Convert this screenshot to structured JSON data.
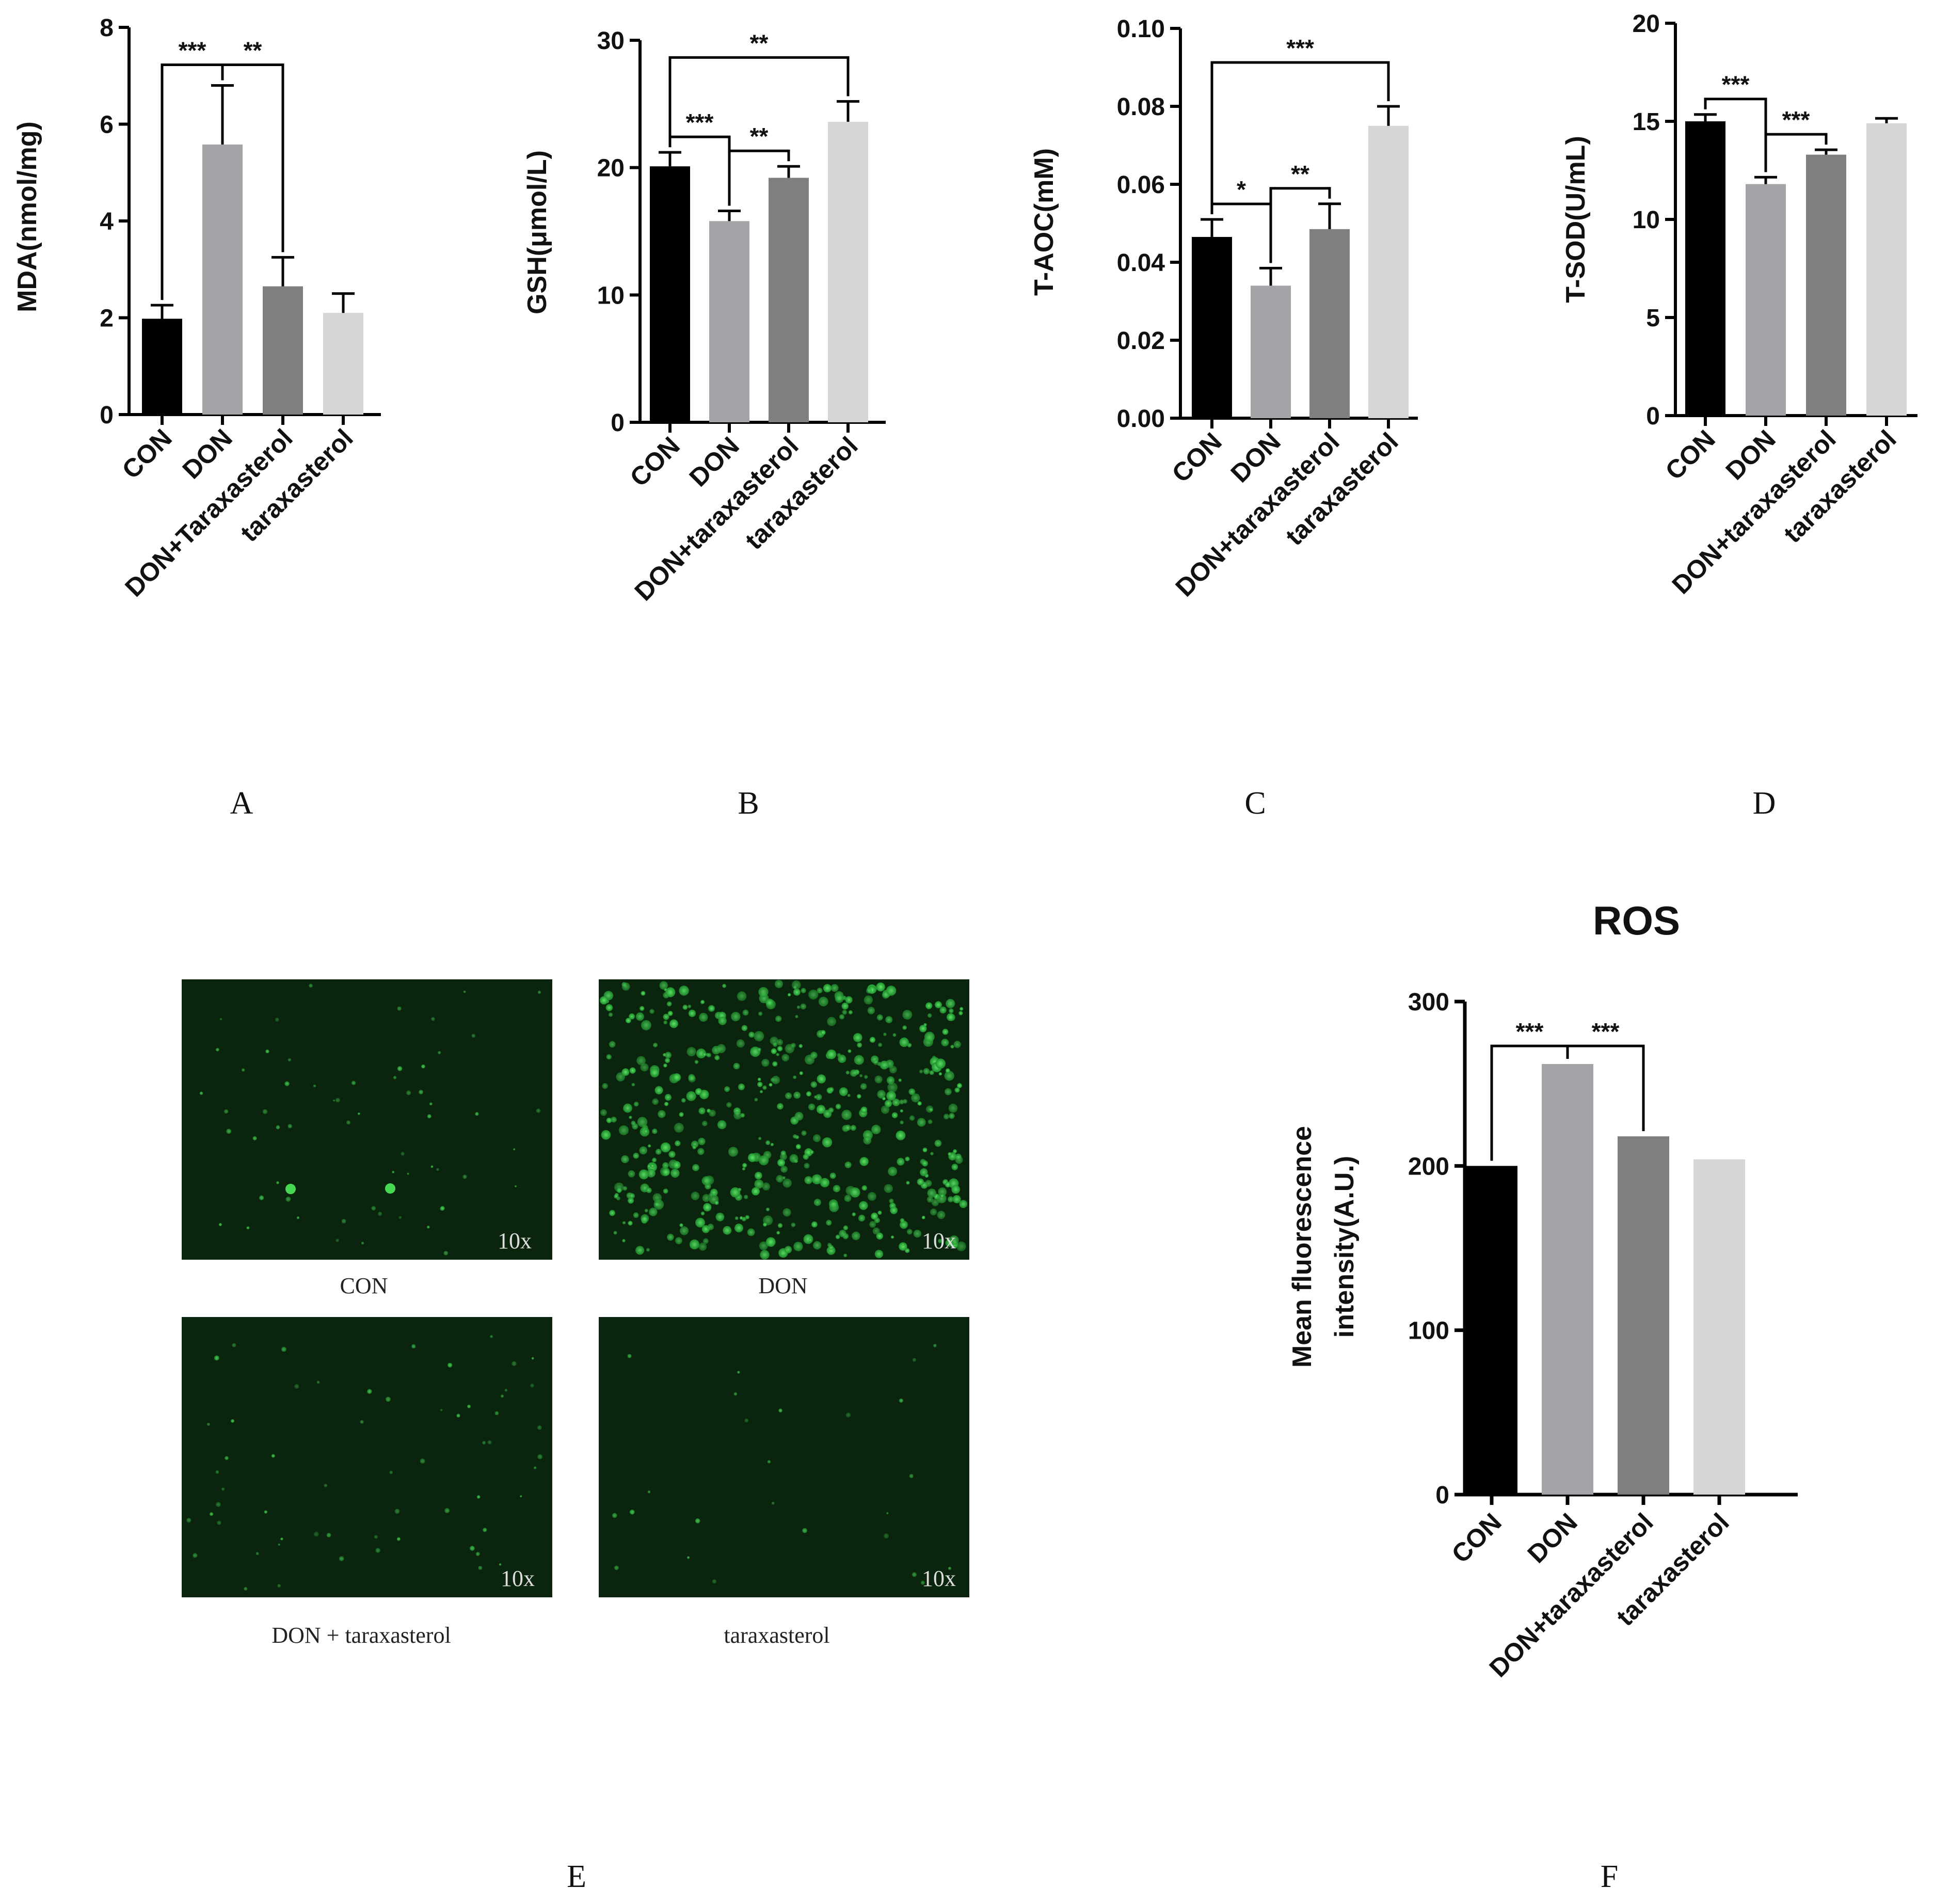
{
  "colors": {
    "CON": "#000000",
    "DON": "#a3a3a8",
    "DON+taraxasterol": "#7f7f7f",
    "taraxasterol": "#d6d6d6",
    "micrograph_background": "#0b240d",
    "micrograph_cells": "#2fbf3f"
  },
  "chart_data": [
    {
      "panel": "A",
      "type": "bar",
      "categories": [
        "CON",
        "DON",
        "DON+Taraxasterol",
        "taraxasterol"
      ],
      "values": [
        1.98,
        5.58,
        2.65,
        2.1
      ],
      "errors": [
        0.28,
        1.22,
        0.6,
        0.4
      ],
      "ylabel": "MDA(nmol/mg)",
      "ylim": [
        0,
        8
      ],
      "yticks": [
        0,
        2,
        4,
        6,
        8
      ],
      "tick_labels": [
        "0",
        "2",
        "4",
        "6",
        "8"
      ],
      "significance": [
        {
          "from": 0,
          "to": 1,
          "label": "***"
        },
        {
          "from": 1,
          "to": 2,
          "label": "**"
        }
      ]
    },
    {
      "panel": "B",
      "type": "bar",
      "categories": [
        "CON",
        "DON",
        "DON+taraxasterol",
        "taraxasterol"
      ],
      "values": [
        20.1,
        15.8,
        19.2,
        23.6
      ],
      "errors": [
        1.1,
        0.8,
        0.9,
        1.6
      ],
      "ylabel": "GSH(μmol/L)",
      "ylim": [
        0,
        30
      ],
      "yticks": [
        0,
        10,
        20,
        30
      ],
      "tick_labels": [
        "0",
        "10",
        "20",
        "30"
      ],
      "significance": [
        {
          "from": 0,
          "to": 1,
          "label": "***"
        },
        {
          "from": 1,
          "to": 2,
          "label": "**"
        },
        {
          "from": 0,
          "to": 3,
          "label": "**"
        }
      ]
    },
    {
      "panel": "C",
      "type": "bar",
      "categories": [
        "CON",
        "DON",
        "DON+taraxasterol",
        "taraxasterol"
      ],
      "values": [
        0.0465,
        0.034,
        0.0485,
        0.075
      ],
      "errors": [
        0.0045,
        0.0045,
        0.0065,
        0.005
      ],
      "ylabel": "T-AOC(mM)",
      "ylim": [
        0,
        0.1
      ],
      "yticks": [
        0,
        0.02,
        0.04,
        0.06,
        0.08,
        0.1
      ],
      "tick_labels": [
        "0.00",
        "0.02",
        "0.04",
        "0.06",
        "0.08",
        "0.10"
      ],
      "significance": [
        {
          "from": 0,
          "to": 1,
          "label": "*"
        },
        {
          "from": 1,
          "to": 2,
          "label": "**"
        },
        {
          "from": 0,
          "to": 3,
          "label": "***"
        }
      ]
    },
    {
      "panel": "D",
      "type": "bar",
      "categories": [
        "CON",
        "DON",
        "DON+taraxasterol",
        "taraxasterol"
      ],
      "values": [
        15.0,
        11.8,
        13.3,
        14.9
      ],
      "errors": [
        0.35,
        0.35,
        0.25,
        0.25
      ],
      "ylabel": "T-SOD(U/mL)",
      "ylim": [
        0,
        20
      ],
      "yticks": [
        0,
        5,
        10,
        15,
        20
      ],
      "tick_labels": [
        "0",
        "5",
        "10",
        "15",
        "20"
      ],
      "significance": [
        {
          "from": 0,
          "to": 1,
          "label": "***"
        },
        {
          "from": 1,
          "to": 2,
          "label": "***"
        }
      ]
    },
    {
      "panel": "F",
      "type": "bar",
      "title": "ROS",
      "categories": [
        "CON",
        "DON",
        "DON+taraxasterol",
        "taraxasterol"
      ],
      "values": [
        200,
        262,
        218,
        204
      ],
      "errors": [
        0,
        0,
        0,
        0
      ],
      "ylabel": "Mean fluorescence intensity(A.U.)",
      "ylim": [
        0,
        300
      ],
      "yticks": [
        0,
        100,
        200,
        300
      ],
      "tick_labels": [
        "0",
        "100",
        "200",
        "300"
      ],
      "significance": [
        {
          "from": 0,
          "to": 1,
          "label": "***"
        },
        {
          "from": 1,
          "to": 2,
          "label": "***"
        }
      ]
    }
  ],
  "panel_letters": {
    "A": "A",
    "B": "B",
    "C": "C",
    "D": "D",
    "E": "E",
    "F": "F"
  },
  "micrographs": {
    "magnification": "10x",
    "captions": [
      "CON",
      "DON",
      "DON + taraxasterol",
      "taraxasterol"
    ],
    "cell_density": [
      "sparse",
      "dense",
      "sparse",
      "very sparse"
    ]
  },
  "ylabel_F": {
    "line1": "Mean fluorescence",
    "line2": "intensity(A.U.)"
  }
}
